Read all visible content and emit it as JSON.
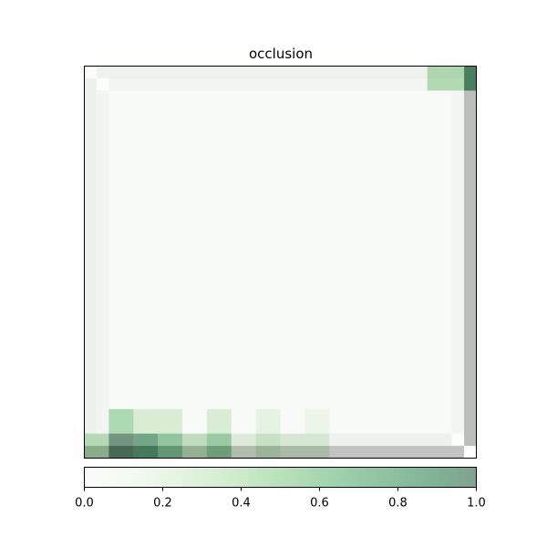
{
  "chart_data": {
    "type": "heatmap",
    "title": "occlusion",
    "colormap": "Greens",
    "overlay_alpha": 0.5,
    "vmin": 0.0,
    "vmax": 1.0,
    "colorbar_ticks": [
      "0.0",
      "0.2",
      "0.4",
      "0.6",
      "0.8",
      "1.0"
    ],
    "grid": {
      "rows": 32,
      "cols": 32
    },
    "background_gray": {
      "outer_frame": 0.9,
      "inner_frame": 0.93,
      "interior": 0.97,
      "right_column": 0.5,
      "bottom_row": 0.55,
      "row_above_bottom": 0.9,
      "right_bright_cells": [
        {
          "r": 0,
          "c": 0,
          "v": 1.0
        },
        {
          "r": 1,
          "c": 1,
          "v": 1.0
        },
        {
          "r": 30,
          "c": 30,
          "v": 1.0
        },
        {
          "r": 31,
          "c": 31,
          "v": 1.0
        }
      ]
    },
    "occlusion_patches": [
      {
        "r0": 0,
        "c0": 28,
        "r1": 1,
        "c1": 30,
        "v": 0.5
      },
      {
        "r0": 0,
        "c0": 31,
        "r1": 1,
        "c1": 31,
        "v": 0.8
      },
      {
        "r0": 28,
        "c0": 2,
        "r1": 29,
        "c1": 3,
        "v": 0.55
      },
      {
        "r0": 28,
        "c0": 4,
        "r1": 29,
        "c1": 5,
        "v": 0.3
      },
      {
        "r0": 28,
        "c0": 6,
        "r1": 29,
        "c1": 7,
        "v": 0.3
      },
      {
        "r0": 28,
        "c0": 10,
        "r1": 29,
        "c1": 11,
        "v": 0.3
      },
      {
        "r0": 28,
        "c0": 14,
        "r1": 29,
        "c1": 15,
        "v": 0.2
      },
      {
        "r0": 28,
        "c0": 18,
        "r1": 29,
        "c1": 19,
        "v": 0.15
      },
      {
        "r0": 30,
        "c0": 0,
        "r1": 31,
        "c1": 1,
        "v": 0.45
      },
      {
        "r0": 30,
        "c0": 2,
        "r1": 31,
        "c1": 3,
        "v": 1.0
      },
      {
        "r0": 30,
        "c0": 4,
        "r1": 31,
        "c1": 5,
        "v": 0.9
      },
      {
        "r0": 30,
        "c0": 6,
        "r1": 31,
        "c1": 7,
        "v": 0.65
      },
      {
        "r0": 30,
        "c0": 8,
        "r1": 31,
        "c1": 9,
        "v": 0.4
      },
      {
        "r0": 30,
        "c0": 10,
        "r1": 31,
        "c1": 11,
        "v": 0.6
      },
      {
        "r0": 30,
        "c0": 12,
        "r1": 31,
        "c1": 13,
        "v": 0.2
      },
      {
        "r0": 30,
        "c0": 14,
        "r1": 31,
        "c1": 15,
        "v": 0.35
      },
      {
        "r0": 30,
        "c0": 16,
        "r1": 31,
        "c1": 17,
        "v": 0.25
      },
      {
        "r0": 30,
        "c0": 18,
        "r1": 31,
        "c1": 19,
        "v": 0.25
      }
    ]
  }
}
